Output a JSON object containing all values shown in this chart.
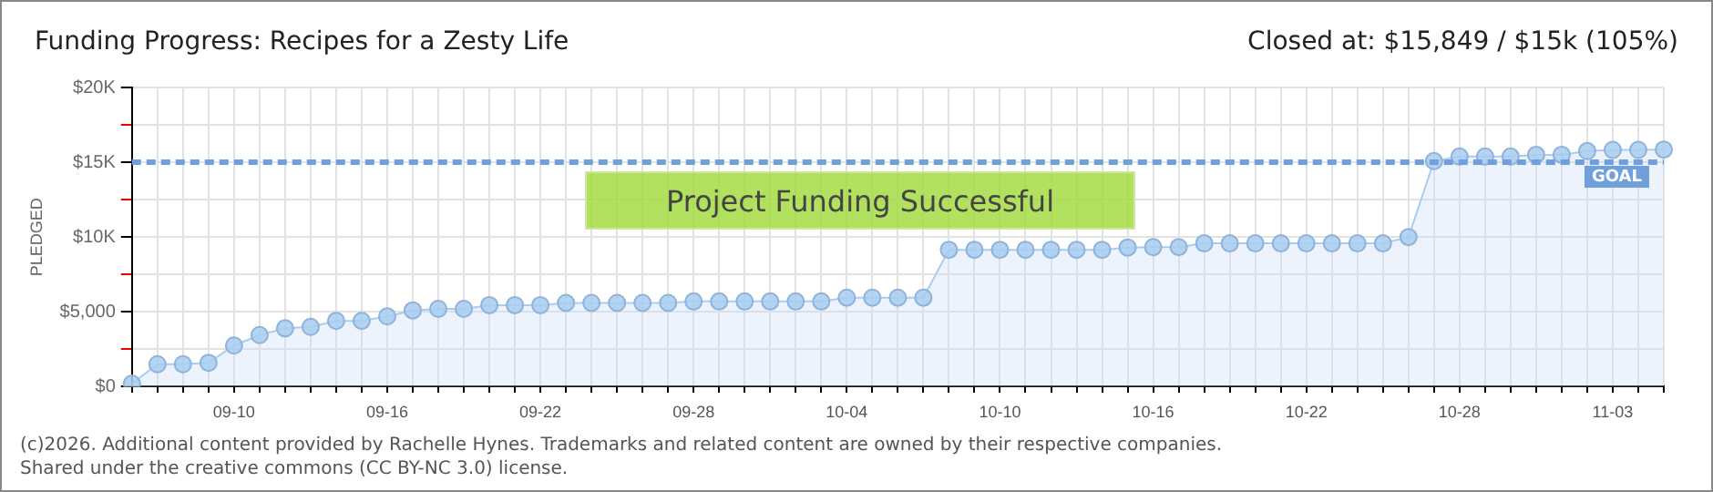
{
  "chart_data": {
    "type": "area",
    "title": "Funding Progress: Recipes for a Zesty Life",
    "subtitle": "Closed at: $15,849 / $15k (105%)",
    "ylabel": "PLEDGED",
    "categories": [
      null,
      null,
      null,
      null,
      "09-10",
      null,
      null,
      null,
      null,
      null,
      "09-16",
      null,
      null,
      null,
      null,
      null,
      "09-22",
      null,
      null,
      null,
      null,
      null,
      "09-28",
      null,
      null,
      null,
      null,
      null,
      "10-04",
      null,
      null,
      null,
      null,
      null,
      "10-10",
      null,
      null,
      null,
      null,
      null,
      "10-16",
      null,
      null,
      null,
      null,
      null,
      "10-22",
      null,
      null,
      null,
      null,
      null,
      "10-28",
      null,
      null,
      null,
      null,
      null,
      "11-03",
      null,
      null
    ],
    "series": [
      {
        "color": "#a9cdf0",
        "values": [
          200,
          1500,
          1500,
          1600,
          2750,
          3450,
          3900,
          4000,
          4400,
          4400,
          4700,
          5100,
          5200,
          5200,
          5450,
          5450,
          5450,
          5600,
          5600,
          5600,
          5600,
          5600,
          5700,
          5700,
          5700,
          5700,
          5700,
          5700,
          5950,
          5950,
          5950,
          5950,
          9150,
          9150,
          9150,
          9150,
          9150,
          9150,
          9150,
          9300,
          9330,
          9330,
          9580,
          9580,
          9580,
          9580,
          9580,
          9580,
          9580,
          9580,
          10000,
          15080,
          15380,
          15380,
          15380,
          15500,
          15500,
          15750,
          15830,
          15830,
          15849
        ]
      }
    ],
    "ylim": [
      0,
      20000
    ],
    "yticks": [
      {
        "value": 0,
        "label": "$0"
      },
      {
        "value": 2500,
        "label": null
      },
      {
        "value": 5000,
        "label": "$5,000"
      },
      {
        "value": 7500,
        "label": null
      },
      {
        "value": 10000,
        "label": "$10K"
      },
      {
        "value": 12500,
        "label": null
      },
      {
        "value": 15000,
        "label": "$15K"
      },
      {
        "value": 17500,
        "label": null
      },
      {
        "value": 20000,
        "label": "$20K"
      }
    ],
    "ref_lines": [
      {
        "axis": "y",
        "value": 15000,
        "label": "GOAL",
        "color": "#6fa0dc",
        "line_style": "dashed"
      }
    ],
    "grid": true,
    "legend": false,
    "marker": "circle",
    "line_style": "solid",
    "annotations": [
      "Project Funding Successful",
      "(c)2026. Additional content provided by Rachelle Hynes. Trademarks and related content are owned by their respective companies.",
      "Shared under the creative commons (CC BY-NC 3.0) license."
    ]
  }
}
